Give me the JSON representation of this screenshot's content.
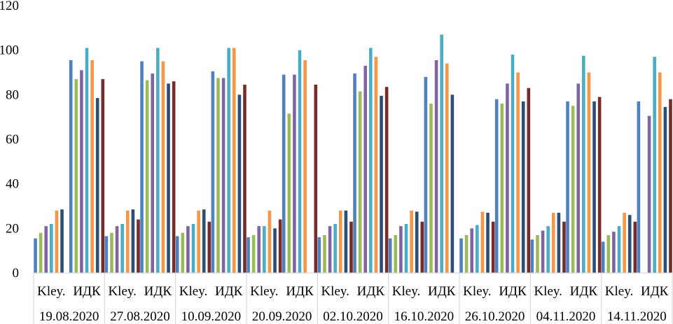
{
  "chart_data": {
    "type": "bar",
    "ylim": [
      0,
      120
    ],
    "yticks": [
      0,
      20,
      40,
      60,
      80,
      100,
      120
    ],
    "grid": false,
    "groups": [
      {
        "date": "19.08.2020",
        "subgroups": [
          "Kley.",
          "ИДК"
        ]
      },
      {
        "date": "27.08.2020",
        "subgroups": [
          "Kley.",
          "ИДК"
        ]
      },
      {
        "date": "10.09.2020",
        "subgroups": [
          "Kley.",
          "ИДК"
        ]
      },
      {
        "date": "20.09.2020",
        "subgroups": [
          "Kley.",
          "ИДК"
        ]
      },
      {
        "date": "02.10.2020",
        "subgroups": [
          "Kley.",
          "ИДК"
        ]
      },
      {
        "date": "16.10.2020",
        "subgroups": [
          "Kley.",
          "ИДК"
        ]
      },
      {
        "date": "26.10.2020",
        "subgroups": [
          "Kley.",
          "ИДК"
        ]
      },
      {
        "date": "04.11.2020",
        "subgroups": [
          "Kley.",
          "ИДК"
        ]
      },
      {
        "date": "14.11.2020",
        "subgroups": [
          "Kley.",
          "ИДК"
        ]
      }
    ],
    "categories": [
      "Kley. 19.08.2020",
      "ИДК 19.08.2020",
      "Kley. 27.08.2020",
      "ИДК 27.08.2020",
      "Kley. 10.09.2020",
      "ИДК 10.09.2020",
      "Kley. 20.09.2020",
      "ИДК 20.09.2020",
      "Kley. 02.10.2020",
      "ИДК 02.10.2020",
      "Kley. 16.10.2020",
      "ИДК 16.10.2020",
      "Kley. 26.10.2020",
      "ИДК 26.10.2020",
      "Kley. 04.11.2020",
      "ИДК 04.11.2020",
      "Kley. 14.11.2020",
      "ИДК 14.11.2020"
    ],
    "series": [
      {
        "color": "#4F81BD",
        "values": [
          15.5,
          95.5,
          16.5,
          95,
          16.5,
          90.5,
          16,
          89,
          16,
          89.5,
          15.5,
          88,
          15.5,
          78,
          15,
          77,
          14,
          77
        ]
      },
      {
        "color": "#9BBB59",
        "values": [
          18,
          87,
          18,
          86.5,
          18,
          87.5,
          17,
          71.5,
          17,
          81.5,
          17,
          76,
          17,
          76,
          17,
          75,
          17,
          null
        ]
      },
      {
        "color": "#8064A2",
        "values": [
          21,
          91,
          21,
          89.5,
          21,
          87.5,
          21,
          89,
          21,
          93,
          21,
          95.5,
          20,
          85,
          19,
          85,
          18.5,
          70.5
        ]
      },
      {
        "color": "#4BACC6",
        "values": [
          22,
          101,
          22,
          101,
          22,
          101,
          21,
          100,
          22,
          101,
          22,
          107,
          21.5,
          98,
          21,
          97.5,
          21,
          97
        ]
      },
      {
        "color": "#F79646",
        "values": [
          28,
          95.5,
          28,
          95,
          28,
          101,
          28,
          95.5,
          28,
          97,
          28,
          94,
          27.5,
          90,
          27,
          90,
          27,
          90
        ]
      },
      {
        "color": "#2C4D75",
        "values": [
          28.5,
          78.5,
          28.5,
          85,
          28.5,
          80,
          20,
          null,
          28,
          79.5,
          27.5,
          80,
          27,
          77,
          27,
          77,
          26,
          74.5
        ]
      },
      {
        "color": "#772C2A",
        "values": [
          null,
          87,
          24,
          86,
          23,
          84.5,
          24,
          84.5,
          23,
          83.5,
          23,
          null,
          23,
          83,
          23,
          79,
          23,
          78
        ]
      }
    ]
  }
}
